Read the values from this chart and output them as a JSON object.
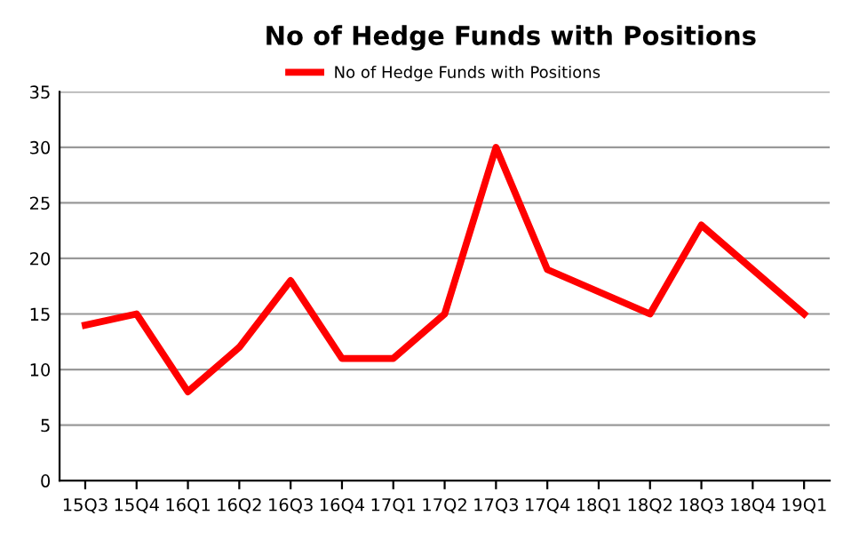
{
  "chart_data": {
    "type": "line",
    "title": "No of Hedge Funds with Positions",
    "categories": [
      "15Q3",
      "15Q4",
      "16Q1",
      "16Q2",
      "16Q3",
      "16Q4",
      "17Q1",
      "17Q2",
      "17Q3",
      "17Q4",
      "18Q1",
      "18Q2",
      "18Q3",
      "18Q4",
      "19Q1"
    ],
    "series": [
      {
        "name": "No of Hedge Funds with Positions",
        "color": "#ff0000",
        "values": [
          14,
          15,
          8,
          12,
          18,
          11,
          11,
          15,
          30,
          19,
          17,
          15,
          23,
          19,
          15
        ]
      }
    ],
    "ylim": [
      0,
      35
    ],
    "yticks": [
      0,
      5,
      10,
      15,
      20,
      25,
      30,
      35
    ],
    "grid": "y",
    "legend": "top",
    "marker": "none",
    "line_style": "solid"
  }
}
